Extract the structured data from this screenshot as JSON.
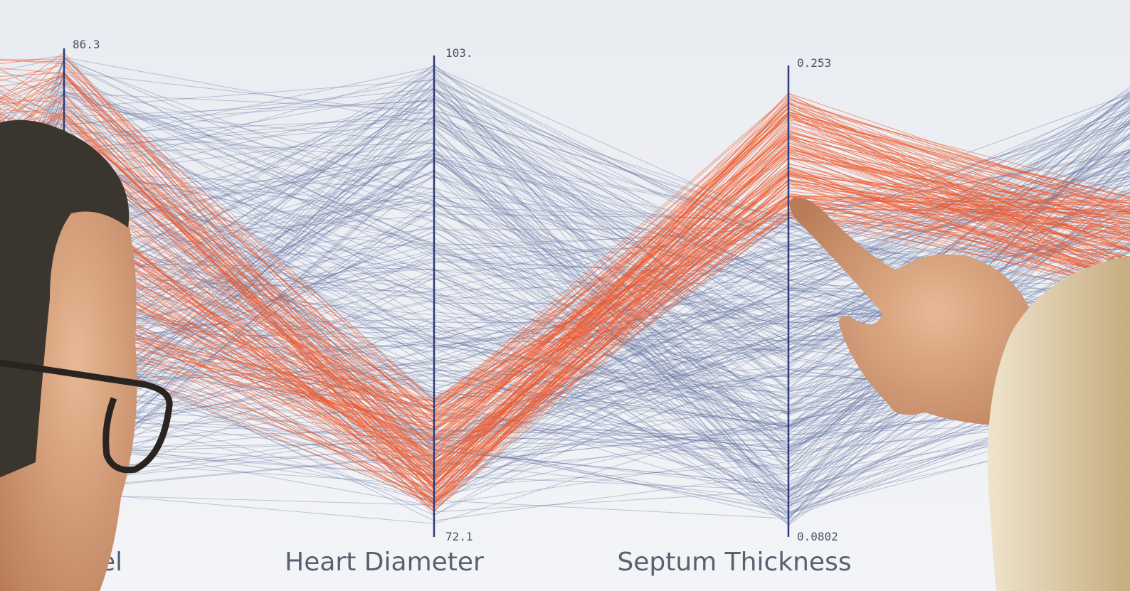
{
  "axes": [
    {
      "label": "el",
      "max": "86.3"
    },
    {
      "label": "Heart Diameter",
      "max": "103.",
      "min": "72.1"
    },
    {
      "label": "Septum Thickness",
      "max": "0.253",
      "min": "0.0802"
    }
  ]
}
